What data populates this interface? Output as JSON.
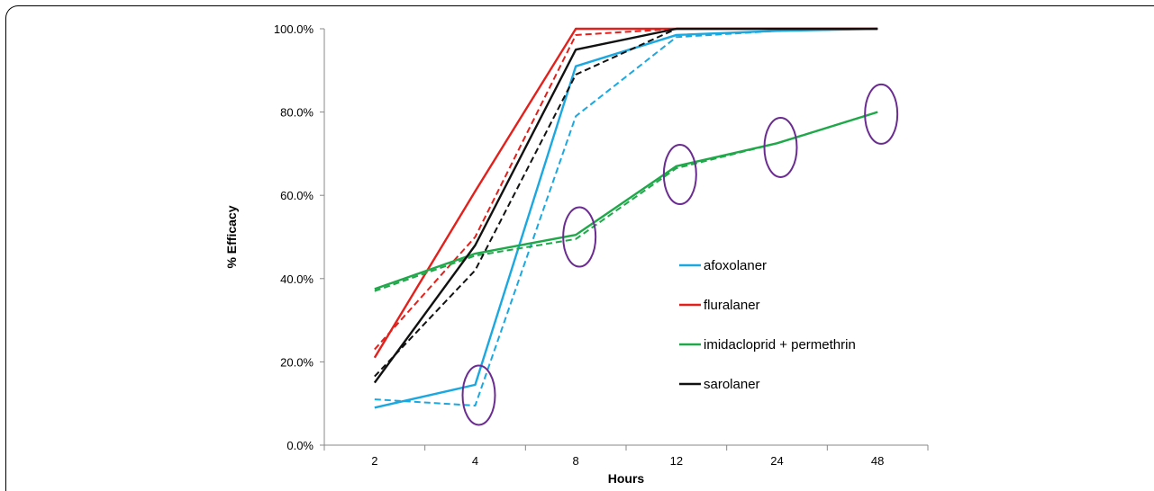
{
  "chart_data": {
    "type": "line",
    "categories": [
      "2",
      "4",
      "8",
      "12",
      "24",
      "48"
    ],
    "xlabel": "Hours",
    "ylabel": "% Efficacy",
    "ylim": [
      0,
      100
    ],
    "y_ticks": [
      "0.0%",
      "20.0%",
      "40.0%",
      "60.0%",
      "80.0%",
      "100.0%"
    ],
    "grid": false,
    "legend_position": "right, inside plot",
    "series": [
      {
        "name": "afoxolaner",
        "color": "#1BA8E0",
        "style": "solid",
        "values": [
          9,
          14.5,
          91,
          98.5,
          99.5,
          100
        ]
      },
      {
        "name": "afoxolaner",
        "color": "#1BA8E0",
        "style": "dashed",
        "in_legend": false,
        "values": [
          11,
          9.5,
          79,
          98,
          99.5,
          100
        ]
      },
      {
        "name": "fluralaner",
        "color": "#E3201B",
        "style": "solid",
        "values": [
          21,
          61,
          100,
          100,
          100,
          100
        ]
      },
      {
        "name": "fluralaner",
        "color": "#E3201B",
        "style": "dashed",
        "in_legend": false,
        "values": [
          23,
          50,
          98.5,
          100,
          100,
          100
        ]
      },
      {
        "name": "imidacloprid + permethrin",
        "color": "#1FA84A",
        "style": "solid",
        "values": [
          37.5,
          46,
          50.5,
          67,
          72.5,
          80
        ]
      },
      {
        "name": "imidacloprid + permethrin",
        "color": "#1FA84A",
        "style": "dashed",
        "in_legend": false,
        "values": [
          37,
          45.5,
          49.5,
          66.5,
          72.5,
          80
        ]
      },
      {
        "name": "sarolaner",
        "color": "#111111",
        "style": "solid",
        "values": [
          15,
          48,
          95,
          100,
          100,
          100
        ]
      },
      {
        "name": "sarolaner",
        "color": "#111111",
        "style": "dashed",
        "in_legend": false,
        "values": [
          16.5,
          42,
          89,
          100,
          100,
          100
        ]
      }
    ],
    "annotations": {
      "type": "circle-highlight",
      "color": "#6B2C91",
      "points": [
        {
          "category": "4",
          "value": 12
        },
        {
          "category": "8",
          "value": 50
        },
        {
          "category": "12",
          "value": 65
        },
        {
          "category": "24",
          "value": 71.5
        },
        {
          "category": "48",
          "value": 79.5
        }
      ]
    }
  }
}
